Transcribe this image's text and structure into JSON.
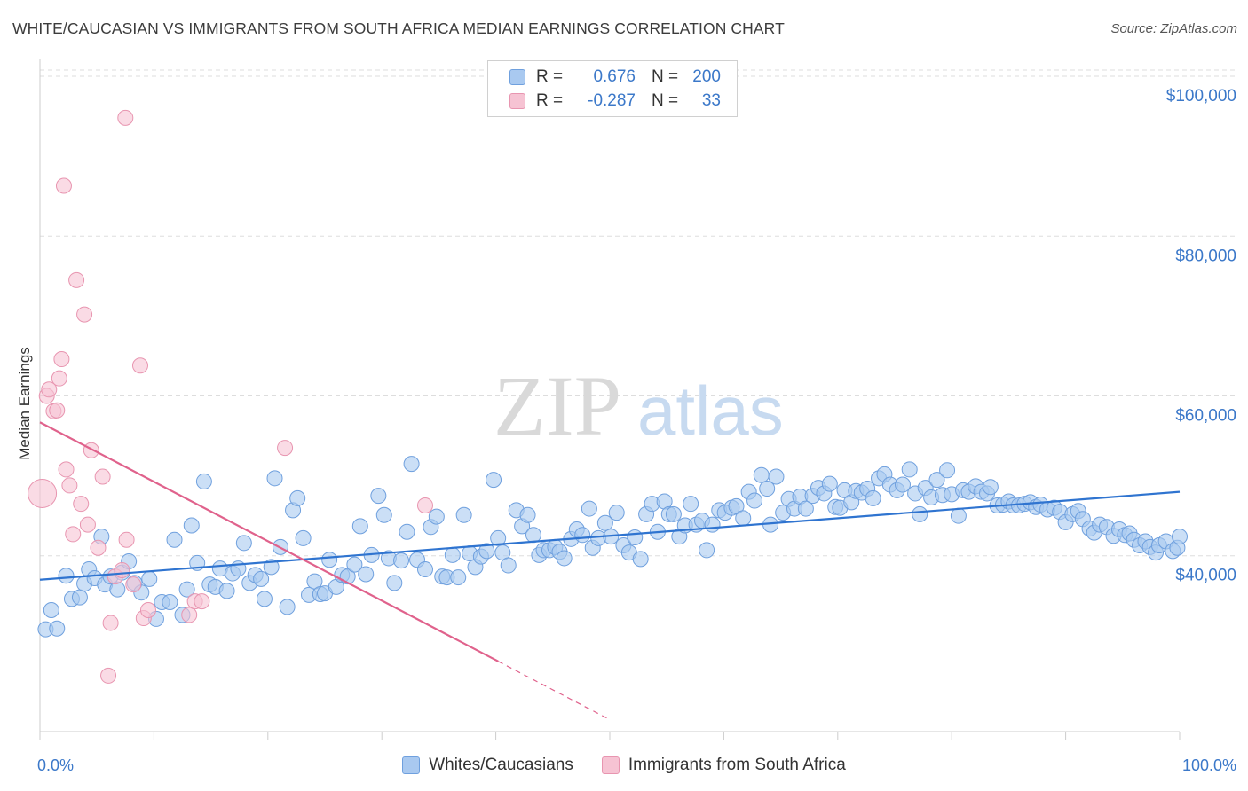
{
  "title": "WHITE/CAUCASIAN VS IMMIGRANTS FROM SOUTH AFRICA MEDIAN EARNINGS CORRELATION CHART",
  "source": "Source: ZipAtlas.com",
  "watermark": {
    "zip": "ZIP",
    "atlas": "atlas"
  },
  "colors": {
    "blue_fill": "#a9c9f0",
    "blue_stroke": "#6fa0de",
    "blue_line": "#2f74d0",
    "pink_fill": "#f6c3d3",
    "pink_stroke": "#e895b0",
    "pink_line": "#e0628c",
    "axis_text": "#3b78c9"
  },
  "legend": {
    "rows": [
      {
        "r_label": "R =",
        "r_value": "0.676",
        "n_label": "N =",
        "n_value": "200"
      },
      {
        "r_label": "R =",
        "r_value": "-0.287",
        "n_label": "N =",
        "n_value": "33"
      }
    ]
  },
  "bottom_legend": [
    "Whites/Caucasians",
    "Immigrants from South Africa"
  ],
  "chart_data": {
    "type": "scatter",
    "title": "WHITE/CAUCASIAN VS IMMIGRANTS FROM SOUTH AFRICA MEDIAN EARNINGS CORRELATION CHART",
    "xlabel": "",
    "ylabel": "Median Earnings",
    "xlim": [
      0,
      100
    ],
    "ylim": [
      18000,
      102000
    ],
    "x_tick_labels": [
      "0.0%",
      "100.0%"
    ],
    "y_ticks": [
      40000,
      60000,
      80000,
      100000
    ],
    "y_tick_labels": [
      "$40,000",
      "$60,000",
      "$80,000",
      "$100,000"
    ],
    "grid": "horizontal dashed",
    "legend_position": "top-center",
    "series": [
      {
        "name": "Whites/Caucasians",
        "r": 0.676,
        "n": 200,
        "trend": {
          "x": [
            0,
            100
          ],
          "y": [
            37000,
            48000
          ]
        },
        "points": [
          [
            0.5,
            30800
          ],
          [
            1.0,
            33200
          ],
          [
            1.5,
            30900
          ],
          [
            2.3,
            37500
          ],
          [
            2.8,
            34600
          ],
          [
            3.5,
            34800
          ],
          [
            3.9,
            36500
          ],
          [
            4.3,
            38300
          ],
          [
            4.8,
            37200
          ],
          [
            5.4,
            42400
          ],
          [
            5.7,
            36400
          ],
          [
            6.2,
            37400
          ],
          [
            6.8,
            35800
          ],
          [
            7.2,
            37900
          ],
          [
            7.8,
            39300
          ],
          [
            8.3,
            36600
          ],
          [
            8.9,
            35400
          ],
          [
            9.6,
            37100
          ],
          [
            10.2,
            32100
          ],
          [
            10.7,
            34200
          ],
          [
            11.4,
            34200
          ],
          [
            11.8,
            42000
          ],
          [
            12.5,
            32600
          ],
          [
            12.9,
            35800
          ],
          [
            13.3,
            43800
          ],
          [
            13.8,
            39100
          ],
          [
            14.4,
            49300
          ],
          [
            14.9,
            36400
          ],
          [
            15.4,
            36100
          ],
          [
            15.8,
            38400
          ],
          [
            16.4,
            35600
          ],
          [
            16.9,
            37800
          ],
          [
            17.4,
            38400
          ],
          [
            17.9,
            41600
          ],
          [
            18.4,
            36600
          ],
          [
            18.9,
            37600
          ],
          [
            19.4,
            37100
          ],
          [
            19.7,
            34600
          ],
          [
            20.3,
            38600
          ],
          [
            20.6,
            49700
          ],
          [
            21.1,
            41100
          ],
          [
            21.7,
            33600
          ],
          [
            22.2,
            45700
          ],
          [
            22.6,
            47200
          ],
          [
            23.1,
            42200
          ],
          [
            23.6,
            35100
          ],
          [
            24.1,
            36800
          ],
          [
            24.6,
            35200
          ],
          [
            25.0,
            35300
          ],
          [
            25.4,
            39500
          ],
          [
            26.0,
            36100
          ],
          [
            26.5,
            37600
          ],
          [
            27.0,
            37400
          ],
          [
            27.6,
            38900
          ],
          [
            28.1,
            43700
          ],
          [
            28.6,
            37700
          ],
          [
            29.1,
            40100
          ],
          [
            29.7,
            47500
          ],
          [
            30.2,
            45100
          ],
          [
            30.6,
            39700
          ],
          [
            31.1,
            36600
          ],
          [
            31.7,
            39400
          ],
          [
            32.2,
            43000
          ],
          [
            32.6,
            51500
          ],
          [
            33.1,
            39500
          ],
          [
            33.8,
            38300
          ],
          [
            34.3,
            43600
          ],
          [
            34.8,
            44900
          ],
          [
            35.3,
            37400
          ],
          [
            35.7,
            37300
          ],
          [
            36.2,
            40100
          ],
          [
            36.7,
            37300
          ],
          [
            37.2,
            45100
          ],
          [
            37.7,
            40300
          ],
          [
            38.2,
            38600
          ],
          [
            38.7,
            39900
          ],
          [
            39.2,
            40600
          ],
          [
            39.8,
            49500
          ],
          [
            40.2,
            42200
          ],
          [
            40.6,
            40400
          ],
          [
            41.1,
            38800
          ],
          [
            41.8,
            45700
          ],
          [
            42.3,
            43700
          ],
          [
            42.8,
            45100
          ],
          [
            43.3,
            42600
          ],
          [
            43.8,
            40100
          ],
          [
            44.2,
            40700
          ],
          [
            44.7,
            40700
          ],
          [
            45.2,
            41100
          ],
          [
            45.6,
            40500
          ],
          [
            46.0,
            39700
          ],
          [
            46.6,
            42100
          ],
          [
            47.1,
            43300
          ],
          [
            47.6,
            42600
          ],
          [
            48.2,
            45900
          ],
          [
            48.5,
            41000
          ],
          [
            49.0,
            42200
          ],
          [
            49.6,
            44100
          ],
          [
            50.1,
            42400
          ],
          [
            50.6,
            45400
          ],
          [
            51.2,
            41300
          ],
          [
            51.7,
            40400
          ],
          [
            52.2,
            42300
          ],
          [
            52.7,
            39600
          ],
          [
            53.2,
            45200
          ],
          [
            53.7,
            46500
          ],
          [
            54.2,
            43000
          ],
          [
            54.8,
            46800
          ],
          [
            55.2,
            45200
          ],
          [
            55.6,
            45200
          ],
          [
            56.1,
            42400
          ],
          [
            56.6,
            43800
          ],
          [
            57.1,
            46500
          ],
          [
            57.6,
            43900
          ],
          [
            58.1,
            44400
          ],
          [
            58.5,
            40700
          ],
          [
            59.0,
            43900
          ],
          [
            59.6,
            45700
          ],
          [
            60.1,
            45400
          ],
          [
            60.7,
            46000
          ],
          [
            61.1,
            46200
          ],
          [
            61.7,
            44700
          ],
          [
            62.2,
            48000
          ],
          [
            62.7,
            46900
          ],
          [
            63.3,
            50100
          ],
          [
            63.8,
            48400
          ],
          [
            64.1,
            43900
          ],
          [
            64.6,
            49900
          ],
          [
            65.2,
            45400
          ],
          [
            65.7,
            47100
          ],
          [
            66.2,
            45900
          ],
          [
            66.7,
            47400
          ],
          [
            67.2,
            45900
          ],
          [
            67.8,
            47500
          ],
          [
            68.3,
            48500
          ],
          [
            68.8,
            47800
          ],
          [
            69.3,
            49000
          ],
          [
            69.8,
            46100
          ],
          [
            70.2,
            46000
          ],
          [
            70.6,
            48200
          ],
          [
            71.2,
            46700
          ],
          [
            71.6,
            48100
          ],
          [
            72.1,
            47900
          ],
          [
            72.6,
            48400
          ],
          [
            73.1,
            47200
          ],
          [
            73.6,
            49700
          ],
          [
            74.1,
            50200
          ],
          [
            74.6,
            48900
          ],
          [
            75.2,
            48200
          ],
          [
            75.7,
            48900
          ],
          [
            76.3,
            50800
          ],
          [
            76.8,
            47800
          ],
          [
            77.2,
            45200
          ],
          [
            77.7,
            48500
          ],
          [
            78.2,
            47300
          ],
          [
            78.7,
            49500
          ],
          [
            79.2,
            47600
          ],
          [
            79.6,
            50700
          ],
          [
            80.0,
            47700
          ],
          [
            80.6,
            45000
          ],
          [
            81.0,
            48200
          ],
          [
            81.5,
            48000
          ],
          [
            82.1,
            48700
          ],
          [
            82.6,
            48000
          ],
          [
            83.1,
            47800
          ],
          [
            83.4,
            48600
          ],
          [
            84.0,
            46300
          ],
          [
            84.5,
            46400
          ],
          [
            85.0,
            46800
          ],
          [
            85.4,
            46300
          ],
          [
            85.9,
            46300
          ],
          [
            86.4,
            46500
          ],
          [
            86.9,
            46700
          ],
          [
            87.4,
            46100
          ],
          [
            87.8,
            46400
          ],
          [
            88.4,
            45800
          ],
          [
            89.0,
            46000
          ],
          [
            89.5,
            45500
          ],
          [
            90.0,
            44200
          ],
          [
            90.6,
            45200
          ],
          [
            91.1,
            45600
          ],
          [
            91.5,
            44600
          ],
          [
            92.1,
            43400
          ],
          [
            92.5,
            42900
          ],
          [
            93.0,
            43900
          ],
          [
            93.6,
            43600
          ],
          [
            94.2,
            42500
          ],
          [
            94.7,
            43300
          ],
          [
            95.2,
            42600
          ],
          [
            95.6,
            42800
          ],
          [
            96.0,
            42000
          ],
          [
            96.5,
            41300
          ],
          [
            97.0,
            41800
          ],
          [
            97.4,
            41100
          ],
          [
            97.9,
            40400
          ],
          [
            98.2,
            41300
          ],
          [
            98.8,
            41800
          ],
          [
            99.4,
            40600
          ],
          [
            99.8,
            41000
          ],
          [
            100.0,
            42400
          ]
        ]
      },
      {
        "name": "Immigrants from South Africa",
        "r": -0.287,
        "n": 33,
        "trend": {
          "x": [
            0,
            40.2
          ],
          "y": [
            56700,
            26800
          ],
          "dashed_extension": {
            "x": [
              40.2,
              50.0
            ],
            "y": [
              26800,
              19500
            ]
          }
        },
        "points": [
          [
            0.2,
            47800
          ],
          [
            0.6,
            60000
          ],
          [
            0.8,
            60800
          ],
          [
            1.2,
            58100
          ],
          [
            1.5,
            58200
          ],
          [
            1.7,
            62200
          ],
          [
            1.9,
            64600
          ],
          [
            2.1,
            86300
          ],
          [
            2.3,
            50800
          ],
          [
            2.6,
            48800
          ],
          [
            2.9,
            42700
          ],
          [
            3.2,
            74500
          ],
          [
            3.6,
            46500
          ],
          [
            3.9,
            70200
          ],
          [
            4.2,
            43900
          ],
          [
            4.5,
            53200
          ],
          [
            5.1,
            41000
          ],
          [
            5.5,
            49900
          ],
          [
            6.0,
            25000
          ],
          [
            6.2,
            31600
          ],
          [
            6.6,
            37400
          ],
          [
            7.2,
            38200
          ],
          [
            7.5,
            94800
          ],
          [
            7.6,
            42000
          ],
          [
            8.2,
            36400
          ],
          [
            8.8,
            63800
          ],
          [
            9.1,
            32200
          ],
          [
            9.5,
            33200
          ],
          [
            13.1,
            32600
          ],
          [
            13.6,
            34300
          ],
          [
            14.2,
            34300
          ],
          [
            21.5,
            53500
          ],
          [
            33.8,
            46300
          ]
        ]
      }
    ]
  }
}
